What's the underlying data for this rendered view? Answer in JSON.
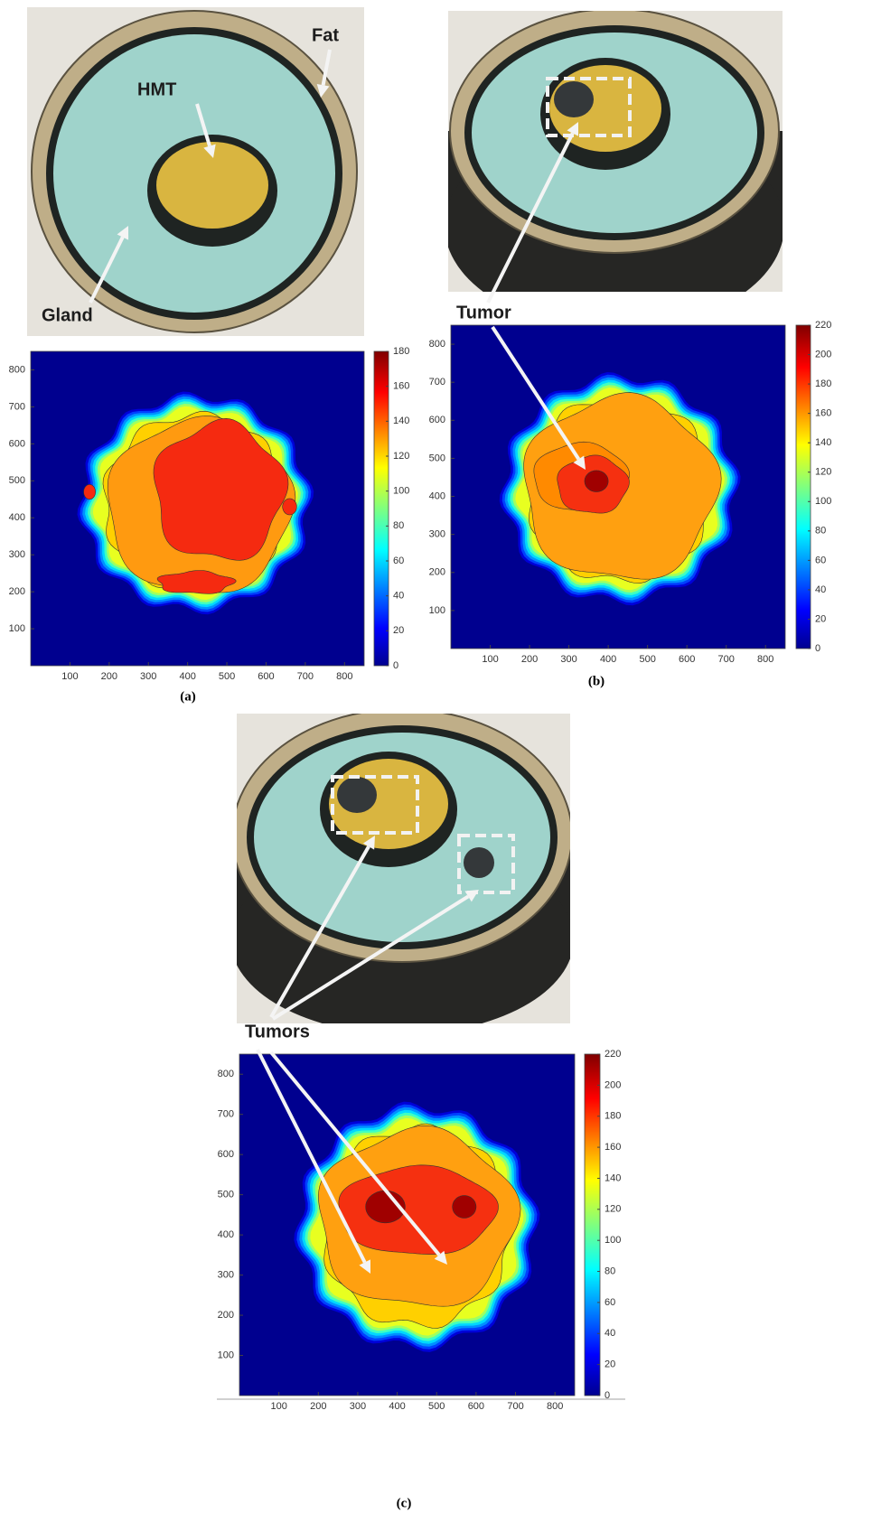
{
  "panels": [
    {
      "label": "(a)",
      "annotations": [
        "Fat",
        "HMT",
        "Gland"
      ],
      "plot": {
        "xlim": [
          0,
          850
        ],
        "ylim": [
          0,
          850
        ],
        "xticks": [
          100,
          200,
          300,
          400,
          500,
          600,
          700,
          800
        ],
        "yticks": [
          100,
          200,
          300,
          400,
          500,
          600,
          700,
          800
        ],
        "colorbar": {
          "lim": [
            0,
            180
          ],
          "ticks": [
            0,
            20,
            40,
            60,
            80,
            100,
            120,
            140,
            160,
            180
          ]
        }
      }
    },
    {
      "label": "(b)",
      "annotations": [
        "Tumor"
      ],
      "plot": {
        "xlim": [
          0,
          850
        ],
        "ylim": [
          0,
          850
        ],
        "xticks": [
          100,
          200,
          300,
          400,
          500,
          600,
          700,
          800
        ],
        "yticks": [
          100,
          200,
          300,
          400,
          500,
          600,
          700,
          800
        ],
        "colorbar": {
          "lim": [
            0,
            220
          ],
          "ticks": [
            0,
            20,
            40,
            60,
            80,
            100,
            120,
            140,
            160,
            180,
            200,
            220
          ]
        }
      }
    },
    {
      "label": "(c)",
      "annotations": [
        "Tumors"
      ],
      "plot": {
        "xlim": [
          0,
          850
        ],
        "ylim": [
          0,
          850
        ],
        "xticks": [
          100,
          200,
          300,
          400,
          500,
          600,
          700,
          800
        ],
        "yticks": [
          100,
          200,
          300,
          400,
          500,
          600,
          700,
          800
        ],
        "colorbar": {
          "lim": [
            0,
            220
          ],
          "ticks": [
            0,
            20,
            40,
            60,
            80,
            100,
            120,
            140,
            160,
            180,
            200,
            220
          ]
        }
      }
    }
  ]
}
